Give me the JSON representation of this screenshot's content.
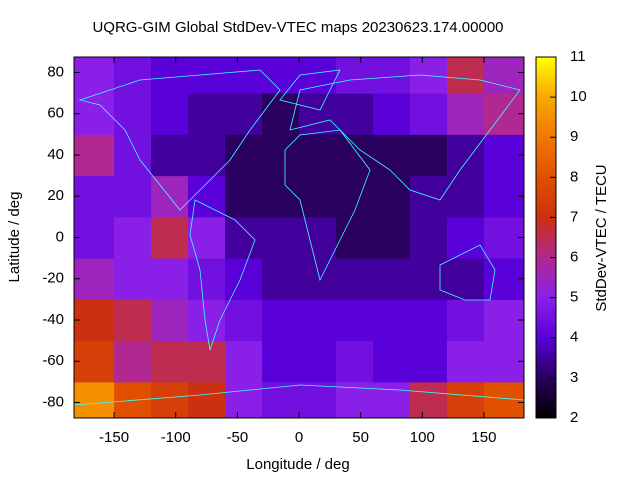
{
  "chart_data": {
    "type": "heatmap",
    "title": "UQRG-GIM Global StdDev-VTEC maps 20230623.174.00000",
    "x_label": "Longitude / deg",
    "y_label": "Latitude / deg",
    "colorbar_label": "StdDev-VTEC / TECU",
    "xlim": [
      -182.5,
      182.5
    ],
    "ylim": [
      -87.5,
      87.5
    ],
    "xticks": [
      -150,
      -100,
      -50,
      0,
      50,
      100,
      150
    ],
    "yticks": [
      -80,
      -60,
      -40,
      -20,
      0,
      20,
      40,
      60,
      80
    ],
    "zlim": [
      2,
      11
    ],
    "zticks": [
      2,
      3,
      4,
      5,
      6,
      7,
      8,
      9,
      10,
      11
    ],
    "x_bins": [
      -182.5,
      -150,
      -120,
      -90,
      -60,
      -30,
      0,
      30,
      60,
      90,
      120,
      150,
      182.5
    ],
    "y_bins": [
      -87.5,
      -70,
      -50,
      -30,
      -10,
      10,
      30,
      50,
      70,
      87.5
    ],
    "values": [
      [
        9.5,
        8,
        7.5,
        7,
        5,
        4.5,
        4.5,
        5,
        5,
        6.5,
        7.5,
        8
      ],
      [
        7.5,
        6,
        6.5,
        6.5,
        5,
        4,
        4,
        4.5,
        4,
        4,
        5,
        5
      ],
      [
        7,
        6.5,
        5.5,
        5,
        4.5,
        4,
        4,
        4,
        4,
        4,
        4.5,
        5
      ],
      [
        5.5,
        5,
        5,
        4.5,
        4,
        3.5,
        3.5,
        3.5,
        3.5,
        3.5,
        3.5,
        4
      ],
      [
        4.5,
        5,
        6.5,
        5,
        3.5,
        3.5,
        3.5,
        3,
        3,
        3.5,
        4,
        4.5
      ],
      [
        4.5,
        4.5,
        5.5,
        4,
        3,
        3,
        3,
        3,
        3,
        3.5,
        3.5,
        4
      ],
      [
        6,
        4.5,
        3.5,
        3.5,
        3,
        3,
        3,
        3,
        3,
        3,
        3.5,
        4
      ],
      [
        5,
        4.5,
        4,
        3.5,
        3.5,
        3,
        3.5,
        3.5,
        4,
        4.5,
        5.5,
        6
      ],
      [
        5,
        4.5,
        4,
        4,
        4,
        4,
        4,
        4.5,
        4.5,
        5,
        6.5,
        5.5
      ]
    ],
    "colorscale": [
      "#000000",
      "#2a0060",
      "#5a00d8",
      "#8a20e8",
      "#b02890",
      "#cc3010",
      "#e05000",
      "#f07800",
      "#f8a800",
      "#ffff00"
    ],
    "coastline_color": "#40ffff"
  }
}
